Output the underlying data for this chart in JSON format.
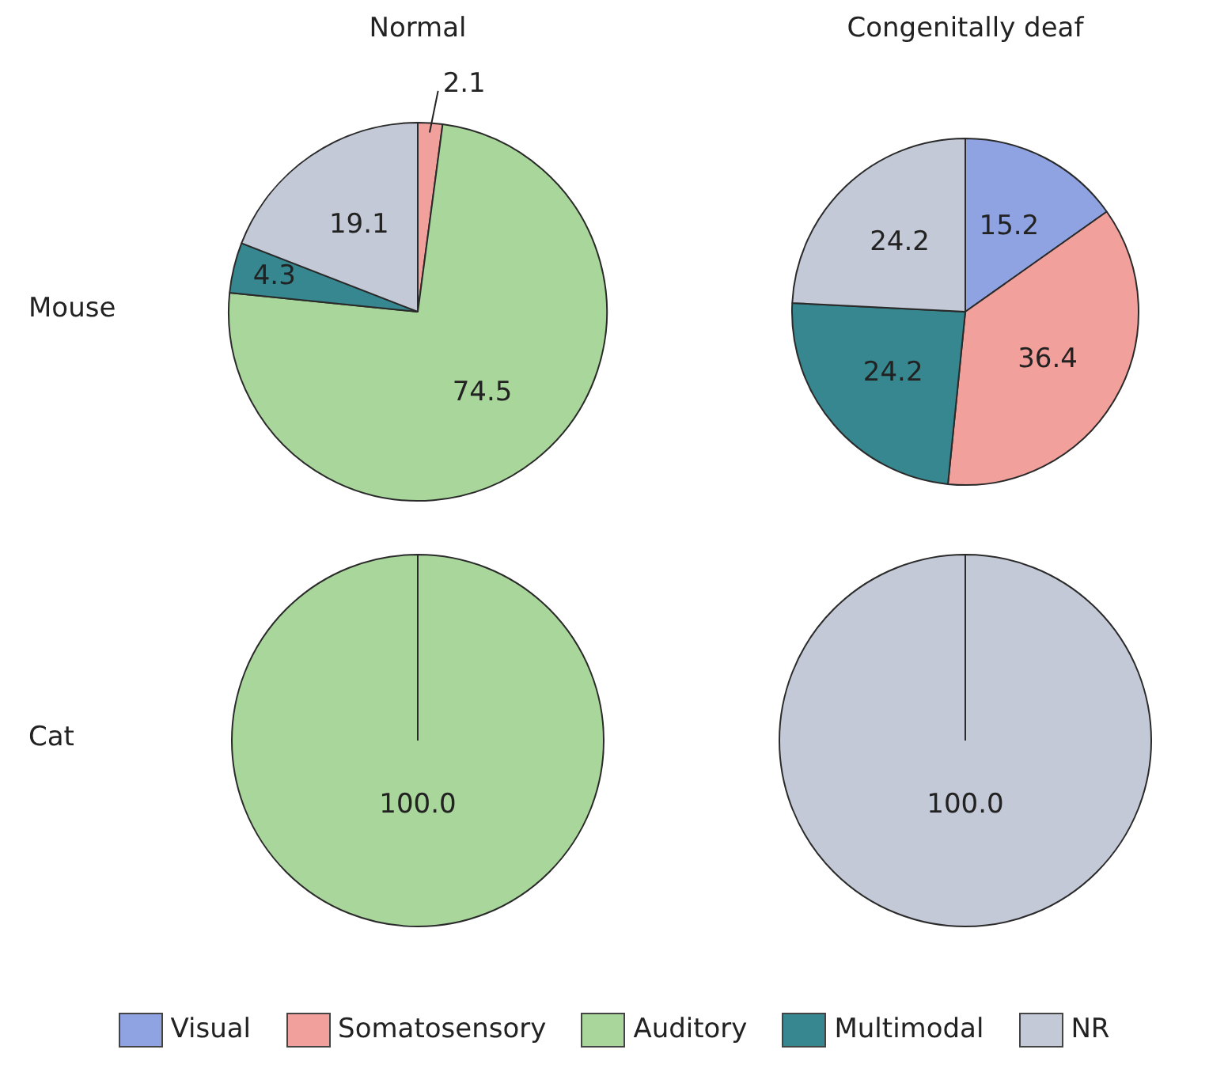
{
  "chart_data": [
    {
      "type": "pie",
      "title": "Normal",
      "ylabel": "Mouse",
      "categories": [
        null,
        null,
        null,
        null,
        null
      ],
      "values": [
        0,
        2.1,
        74.5,
        4.3,
        19.1
      ],
      "value_labels": [
        null,
        "2.1",
        "74.5",
        "4.3",
        "19.1"
      ],
      "colors": [
        "#8fa3e3",
        "#f2a09c",
        "#a9d69b",
        "#36878f",
        "#c3c9d6"
      ]
    },
    {
      "type": "pie",
      "title": "Congenitally deaf",
      "categories": [
        null,
        null,
        null,
        null,
        null
      ],
      "values": [
        15.2,
        36.4,
        0,
        24.2,
        24.2
      ],
      "value_labels": [
        "15.2",
        "36.4",
        null,
        "24.2",
        "24.2"
      ],
      "colors": [
        "#8fa3e3",
        "#f2a09c",
        "#a9d69b",
        "#36878f",
        "#c3c9d6"
      ]
    },
    {
      "type": "pie",
      "ylabel": "Cat",
      "categories": [
        null,
        null,
        null,
        null,
        null
      ],
      "values": [
        0,
        0,
        100,
        0,
        0
      ],
      "value_labels": [
        null,
        null,
        "100.0",
        null,
        null
      ],
      "colors": [
        "#8fa3e3",
        "#f2a09c",
        "#a9d69b",
        "#36878f",
        "#c3c9d6"
      ]
    },
    {
      "type": "pie",
      "categories": [
        "Visual",
        "Somatosensory",
        "Auditory",
        "Multimodal",
        "NR"
      ],
      "values": [
        0,
        0,
        0,
        0,
        100
      ],
      "value_labels": [
        null,
        null,
        null,
        null,
        "100.0"
      ],
      "colors": [
        "#8fa3e3",
        "#f2a09c",
        "#a9d69b",
        "#36878f",
        "#c3c9d6"
      ],
      "legend": "bottom"
    }
  ]
}
